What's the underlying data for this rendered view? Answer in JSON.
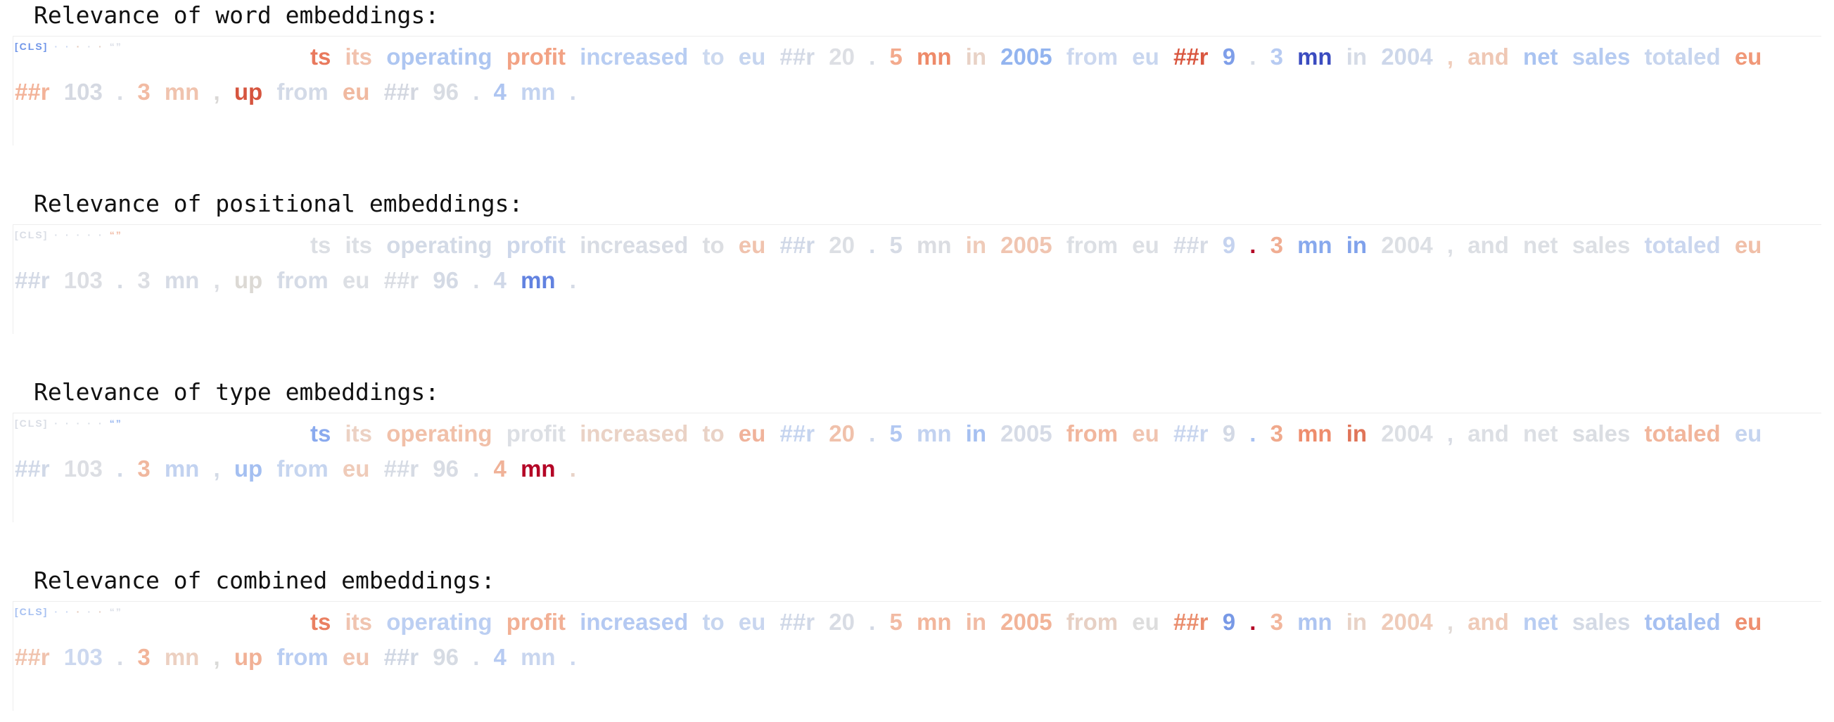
{
  "sections": [
    {
      "title": "Relevance of word embeddings:",
      "special_tokens": [
        {
          "t": "[CLS]",
          "c": "#6f95e8"
        },
        {
          "t": "·",
          "c": "#c9d7f3"
        },
        {
          "t": "·",
          "c": "#c9d7f3"
        },
        {
          "t": "·",
          "c": "#e3c7b8"
        },
        {
          "t": "·",
          "c": "#d8dde8"
        },
        {
          "t": "·",
          "c": "#e5d0c6"
        },
        {
          "t": "“”",
          "c": "#d9dde6"
        }
      ],
      "tokens": [
        {
          "t": "ts",
          "c": "#e9795d"
        },
        {
          "t": "its",
          "c": "#f1c2ae"
        },
        {
          "t": "operating",
          "c": "#aec6f1"
        },
        {
          "t": "profit",
          "c": "#f2a284"
        },
        {
          "t": "increased",
          "c": "#b8cdf2"
        },
        {
          "t": "to",
          "c": "#ccd9ef"
        },
        {
          "t": "eu",
          "c": "#c6d5ef"
        },
        {
          "t": "##r",
          "c": "#d3d9e5"
        },
        {
          "t": "20",
          "c": "#dddfe4"
        },
        {
          "t": ".",
          "c": "#d8dce4"
        },
        {
          "t": "5",
          "c": "#f3aa8d"
        },
        {
          "t": "mn",
          "c": "#ee8a69"
        },
        {
          "t": "in",
          "c": "#e8d2c6"
        },
        {
          "t": "2005",
          "c": "#93b4ef"
        },
        {
          "t": "from",
          "c": "#ccd8ef"
        },
        {
          "t": "eu",
          "c": "#c8d6ef"
        },
        {
          "t": "##r",
          "c": "#d9563f"
        },
        {
          "t": "9",
          "c": "#7e9ee9"
        },
        {
          "t": ".",
          "c": "#d6dbe5"
        },
        {
          "t": "3",
          "c": "#b7cbf2"
        },
        {
          "t": "mn",
          "c": "#3b4cc0"
        },
        {
          "t": "in",
          "c": "#d5dbe6"
        },
        {
          "t": "2004",
          "c": "#cdd7ea"
        },
        {
          "t": ",",
          "c": "#f0cdbb"
        },
        {
          "t": "and",
          "c": "#efc8b5"
        },
        {
          "t": "net",
          "c": "#a9c3f1"
        },
        {
          "t": "sales",
          "c": "#b6cbf1"
        },
        {
          "t": "totaled",
          "c": "#c7d5ee"
        },
        {
          "t": "eu",
          "c": "#f09878"
        },
        {
          "t": "##r",
          "c": "#f3b399"
        },
        {
          "t": "103",
          "c": "#d5d9e2"
        },
        {
          "t": ".",
          "c": "#d9dde5"
        },
        {
          "t": "3",
          "c": "#f2bba3"
        },
        {
          "t": "mn",
          "c": "#f0c3ae"
        },
        {
          "t": ",",
          "c": "#dad8d6"
        },
        {
          "t": "up",
          "c": "#d6553f"
        },
        {
          "t": "from",
          "c": "#d3dae7"
        },
        {
          "t": "eu",
          "c": "#f0b9a0"
        },
        {
          "t": "##r",
          "c": "#d3d7e0"
        },
        {
          "t": "96",
          "c": "#d8dce3"
        },
        {
          "t": ".",
          "c": "#d2d8e3"
        },
        {
          "t": "4",
          "c": "#aec5f1"
        },
        {
          "t": "mn",
          "c": "#c3d3f0"
        },
        {
          "t": ".",
          "c": "#cfd8ea"
        }
      ]
    },
    {
      "title": "Relevance of positional embeddings:",
      "special_tokens": [
        {
          "t": "[CLS]",
          "c": "#d9dde5"
        },
        {
          "t": "·",
          "c": "#d8dde6"
        },
        {
          "t": "·",
          "c": "#d8dde6"
        },
        {
          "t": "·",
          "c": "#d8dde6"
        },
        {
          "t": "·",
          "c": "#d8dde6"
        },
        {
          "t": "·",
          "c": "#d8dde6"
        },
        {
          "t": "“”",
          "c": "#f0b8a0"
        }
      ],
      "tokens": [
        {
          "t": "ts",
          "c": "#dcdfe4"
        },
        {
          "t": "its",
          "c": "#dcdfe4"
        },
        {
          "t": "operating",
          "c": "#d3dae6"
        },
        {
          "t": "profit",
          "c": "#cdd7ea"
        },
        {
          "t": "increased",
          "c": "#d8dce4"
        },
        {
          "t": "to",
          "c": "#dcdee2"
        },
        {
          "t": "eu",
          "c": "#f0c3ae"
        },
        {
          "t": "##r",
          "c": "#d0d8e7"
        },
        {
          "t": "20",
          "c": "#dcdfe4"
        },
        {
          "t": ".",
          "c": "#d3dae6"
        },
        {
          "t": "5",
          "c": "#d6dbe5"
        },
        {
          "t": "mn",
          "c": "#dbdde2"
        },
        {
          "t": "in",
          "c": "#efcbb9"
        },
        {
          "t": "2005",
          "c": "#f0c5b1"
        },
        {
          "t": "from",
          "c": "#dcdfe4"
        },
        {
          "t": "eu",
          "c": "#dcdfe4"
        },
        {
          "t": "##r",
          "c": "#d6dbe5"
        },
        {
          "t": "9",
          "c": "#c5d3ef"
        },
        {
          "t": ".",
          "c": "#b40426"
        },
        {
          "t": "3",
          "c": "#f0ad92"
        },
        {
          "t": "mn",
          "c": "#88a9ed"
        },
        {
          "t": "in",
          "c": "#7fa1eb"
        },
        {
          "t": "2004",
          "c": "#dcdfe4"
        },
        {
          "t": ",",
          "c": "#dcdfe4"
        },
        {
          "t": "and",
          "c": "#dcdfe4"
        },
        {
          "t": "net",
          "c": "#dcdfe4"
        },
        {
          "t": "sales",
          "c": "#dcdfe4"
        },
        {
          "t": "totaled",
          "c": "#cad6ee"
        },
        {
          "t": "eu",
          "c": "#f0bfa8"
        },
        {
          "t": "##r",
          "c": "#d3d9e5"
        },
        {
          "t": "103",
          "c": "#dcdee3"
        },
        {
          "t": ".",
          "c": "#d5dae3"
        },
        {
          "t": "3",
          "c": "#dcdee3"
        },
        {
          "t": "mn",
          "c": "#d6dbe5"
        },
        {
          "t": ",",
          "c": "#dcdee3"
        },
        {
          "t": "up",
          "c": "#dcd9d4"
        },
        {
          "t": "from",
          "c": "#d5dbe6"
        },
        {
          "t": "eu",
          "c": "#dcdfe4"
        },
        {
          "t": "##r",
          "c": "#dadde3"
        },
        {
          "t": "96",
          "c": "#d4dae5"
        },
        {
          "t": ".",
          "c": "#d8dce4"
        },
        {
          "t": "4",
          "c": "#d0d8e8"
        },
        {
          "t": "mn",
          "c": "#6282e0"
        },
        {
          "t": ".",
          "c": "#d5dbe6"
        }
      ]
    },
    {
      "title": "Relevance of type embeddings:",
      "special_tokens": [
        {
          "t": "[CLS]",
          "c": "#d9dde5"
        },
        {
          "t": "·",
          "c": "#d8dde6"
        },
        {
          "t": "·",
          "c": "#d8dde6"
        },
        {
          "t": "·",
          "c": "#d8dde6"
        },
        {
          "t": "·",
          "c": "#d8dde6"
        },
        {
          "t": "·",
          "c": "#d8dde6"
        },
        {
          "t": "“”",
          "c": "#90b1ef"
        }
      ],
      "tokens": [
        {
          "t": "ts",
          "c": "#8aaaee"
        },
        {
          "t": "its",
          "c": "#ecd1c3"
        },
        {
          "t": "operating",
          "c": "#f1c0a9"
        },
        {
          "t": "profit",
          "c": "#dcdfe4"
        },
        {
          "t": "increased",
          "c": "#ead2c5"
        },
        {
          "t": "to",
          "c": "#e9d2c6"
        },
        {
          "t": "eu",
          "c": "#f0b39b"
        },
        {
          "t": "##r",
          "c": "#c5d4ef"
        },
        {
          "t": "20",
          "c": "#f0c1ab"
        },
        {
          "t": ".",
          "c": "#cdd7eb"
        },
        {
          "t": "5",
          "c": "#b2c8f2"
        },
        {
          "t": "mn",
          "c": "#c2d2f0"
        },
        {
          "t": "in",
          "c": "#a6c0f1"
        },
        {
          "t": "2005",
          "c": "#d6dbe6"
        },
        {
          "t": "from",
          "c": "#f1b69d"
        },
        {
          "t": "eu",
          "c": "#f0c4b0"
        },
        {
          "t": "##r",
          "c": "#c8d5ee"
        },
        {
          "t": "9",
          "c": "#d3d9e5"
        },
        {
          "t": ".",
          "c": "#a8c1f1"
        },
        {
          "t": "3",
          "c": "#f0a98c"
        },
        {
          "t": "mn",
          "c": "#ee8d6d"
        },
        {
          "t": "in",
          "c": "#e07458"
        },
        {
          "t": "2004",
          "c": "#dcdfe4"
        },
        {
          "t": ",",
          "c": "#d7dbe3"
        },
        {
          "t": "and",
          "c": "#dcdfe4"
        },
        {
          "t": "net",
          "c": "#dcdfe4"
        },
        {
          "t": "sales",
          "c": "#dadde2"
        },
        {
          "t": "totaled",
          "c": "#f1b59b"
        },
        {
          "t": "eu",
          "c": "#c5d4ef"
        },
        {
          "t": "##r",
          "c": "#d0d8e7"
        },
        {
          "t": "103",
          "c": "#dcdee3"
        },
        {
          "t": ".",
          "c": "#d1d9e7"
        },
        {
          "t": "3",
          "c": "#f0b79e"
        },
        {
          "t": "mn",
          "c": "#c2d2f0"
        },
        {
          "t": ",",
          "c": "#d3dae6"
        },
        {
          "t": "up",
          "c": "#a4bff1"
        },
        {
          "t": "from",
          "c": "#c6d5ef"
        },
        {
          "t": "eu",
          "c": "#efcbb9"
        },
        {
          "t": "##r",
          "c": "#d6dbe4"
        },
        {
          "t": "96",
          "c": "#d8dce4"
        },
        {
          "t": ".",
          "c": "#d6dbe5"
        },
        {
          "t": "4",
          "c": "#f0b298"
        },
        {
          "t": "mn",
          "c": "#b40426"
        },
        {
          "t": ".",
          "c": "#e8d3c8"
        }
      ]
    },
    {
      "title": "Relevance of combined embeddings:",
      "special_tokens": [
        {
          "t": "[CLS]",
          "c": "#a6c0f1"
        },
        {
          "t": "·",
          "c": "#c9d7f3"
        },
        {
          "t": "·",
          "c": "#c9d7f3"
        },
        {
          "t": "·",
          "c": "#e3c7b8"
        },
        {
          "t": "·",
          "c": "#d8dde8"
        },
        {
          "t": "·",
          "c": "#e5d0c6"
        },
        {
          "t": "“”",
          "c": "#d9dde6"
        }
      ],
      "tokens": [
        {
          "t": "ts",
          "c": "#ea8062"
        },
        {
          "t": "its",
          "c": "#f0c4b0"
        },
        {
          "t": "operating",
          "c": "#bccff2"
        },
        {
          "t": "profit",
          "c": "#f2b095"
        },
        {
          "t": "increased",
          "c": "#b4c9f2"
        },
        {
          "t": "to",
          "c": "#c6d5ef"
        },
        {
          "t": "eu",
          "c": "#c9d6ef"
        },
        {
          "t": "##r",
          "c": "#d0d8e7"
        },
        {
          "t": "20",
          "c": "#d8dce4"
        },
        {
          "t": ".",
          "c": "#d3d9e5"
        },
        {
          "t": "5",
          "c": "#f2bba4"
        },
        {
          "t": "mn",
          "c": "#f2b69c"
        },
        {
          "t": "in",
          "c": "#f1bba4"
        },
        {
          "t": "2005",
          "c": "#f2b499"
        },
        {
          "t": "from",
          "c": "#e7d0c4"
        },
        {
          "t": "eu",
          "c": "#dddddd"
        },
        {
          "t": "##r",
          "c": "#ea8d6d"
        },
        {
          "t": "9",
          "c": "#7899e6"
        },
        {
          "t": ".",
          "c": "#b40426"
        },
        {
          "t": "3",
          "c": "#f2b69c"
        },
        {
          "t": "mn",
          "c": "#aec5f1"
        },
        {
          "t": "in",
          "c": "#e8d2c6"
        },
        {
          "t": "2004",
          "c": "#efcbb9"
        },
        {
          "t": ",",
          "c": "#e1dad6"
        },
        {
          "t": "and",
          "c": "#efcbb9"
        },
        {
          "t": "net",
          "c": "#b8cdf2"
        },
        {
          "t": "sales",
          "c": "#d4dae5"
        },
        {
          "t": "totaled",
          "c": "#a6c0f1"
        },
        {
          "t": "eu",
          "c": "#ee8f70"
        },
        {
          "t": "##r",
          "c": "#f0c3ae"
        },
        {
          "t": "103",
          "c": "#ccd8ef"
        },
        {
          "t": ".",
          "c": "#d6dbe5"
        },
        {
          "t": "3",
          "c": "#f2b499"
        },
        {
          "t": "mn",
          "c": "#ecd0c1"
        },
        {
          "t": ",",
          "c": "#dadad8"
        },
        {
          "t": "up",
          "c": "#f1b196"
        },
        {
          "t": "from",
          "c": "#b9cdf2"
        },
        {
          "t": "eu",
          "c": "#f0c4b0"
        },
        {
          "t": "##r",
          "c": "#d0d7e3"
        },
        {
          "t": "96",
          "c": "#d6dbe3"
        },
        {
          "t": ".",
          "c": "#d5dbe6"
        },
        {
          "t": "4",
          "c": "#b7cbf2"
        },
        {
          "t": "mn",
          "c": "#c9d6ef"
        },
        {
          "t": ".",
          "c": "#ccd8ef"
        }
      ]
    }
  ]
}
